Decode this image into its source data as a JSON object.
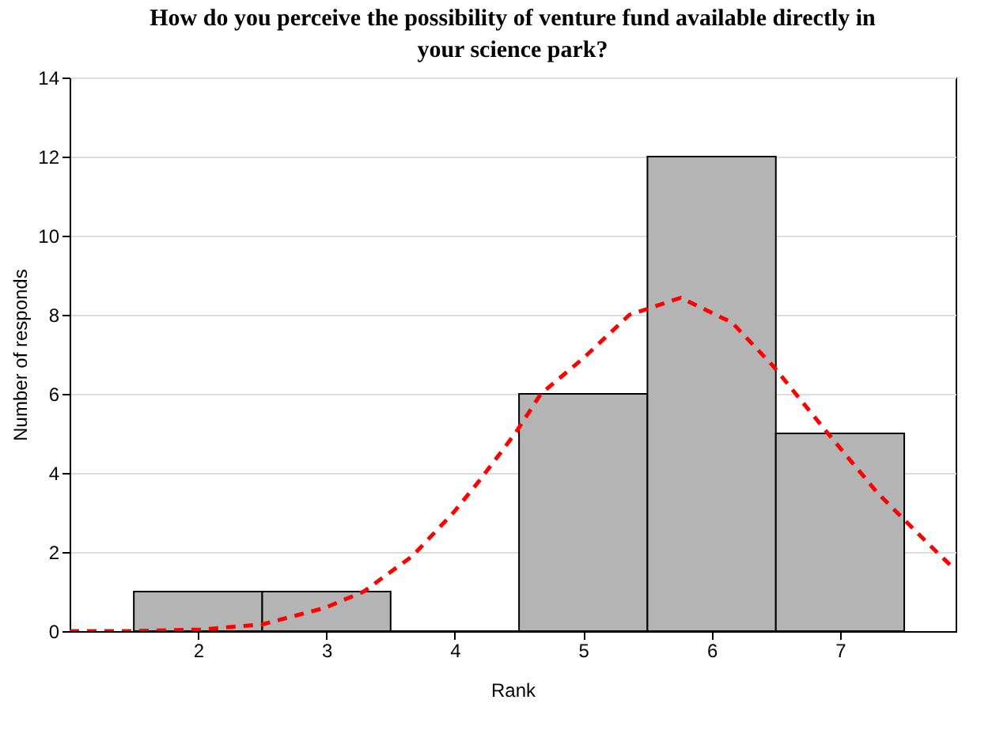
{
  "chart_data": {
    "type": "histogram",
    "title": "How do you perceive the possibility of venture fund available directly in your science park?",
    "xlabel": "Rank",
    "ylabel": "Number of responds",
    "bins": [
      1.5,
      2.5,
      3.5,
      4.5,
      5.5,
      6.5,
      7.5
    ],
    "series": [
      {
        "type": "histogram",
        "color": "#b4b4b4",
        "values": [
          1,
          1,
          0,
          6,
          12,
          5
        ]
      },
      {
        "type": "line",
        "color": "#ff0000",
        "line_style": "dashed",
        "x": [
          1.0,
          1.5,
          2.02,
          2.5,
          2.99,
          3.29,
          3.67,
          3.99,
          4.19,
          4.47,
          4.67,
          5.0,
          5.36,
          5.76,
          6.16,
          6.48,
          6.88,
          7.29,
          7.69,
          7.89
        ],
        "values": [
          0,
          0,
          0.04,
          0.17,
          0.59,
          1.0,
          1.9,
          3.0,
          3.8,
          5.0,
          6.0,
          6.9,
          8.0,
          8.43,
          7.8,
          6.7,
          5.1,
          3.5,
          2.2,
          1.57
        ]
      }
    ],
    "xlim": [
      1,
      7.9
    ],
    "xticks": [
      2,
      3,
      4,
      5,
      6,
      7
    ],
    "ylim": [
      0,
      14
    ],
    "yticks": [
      0,
      2,
      4,
      6,
      8,
      10,
      12,
      14
    ],
    "grid": "y"
  }
}
